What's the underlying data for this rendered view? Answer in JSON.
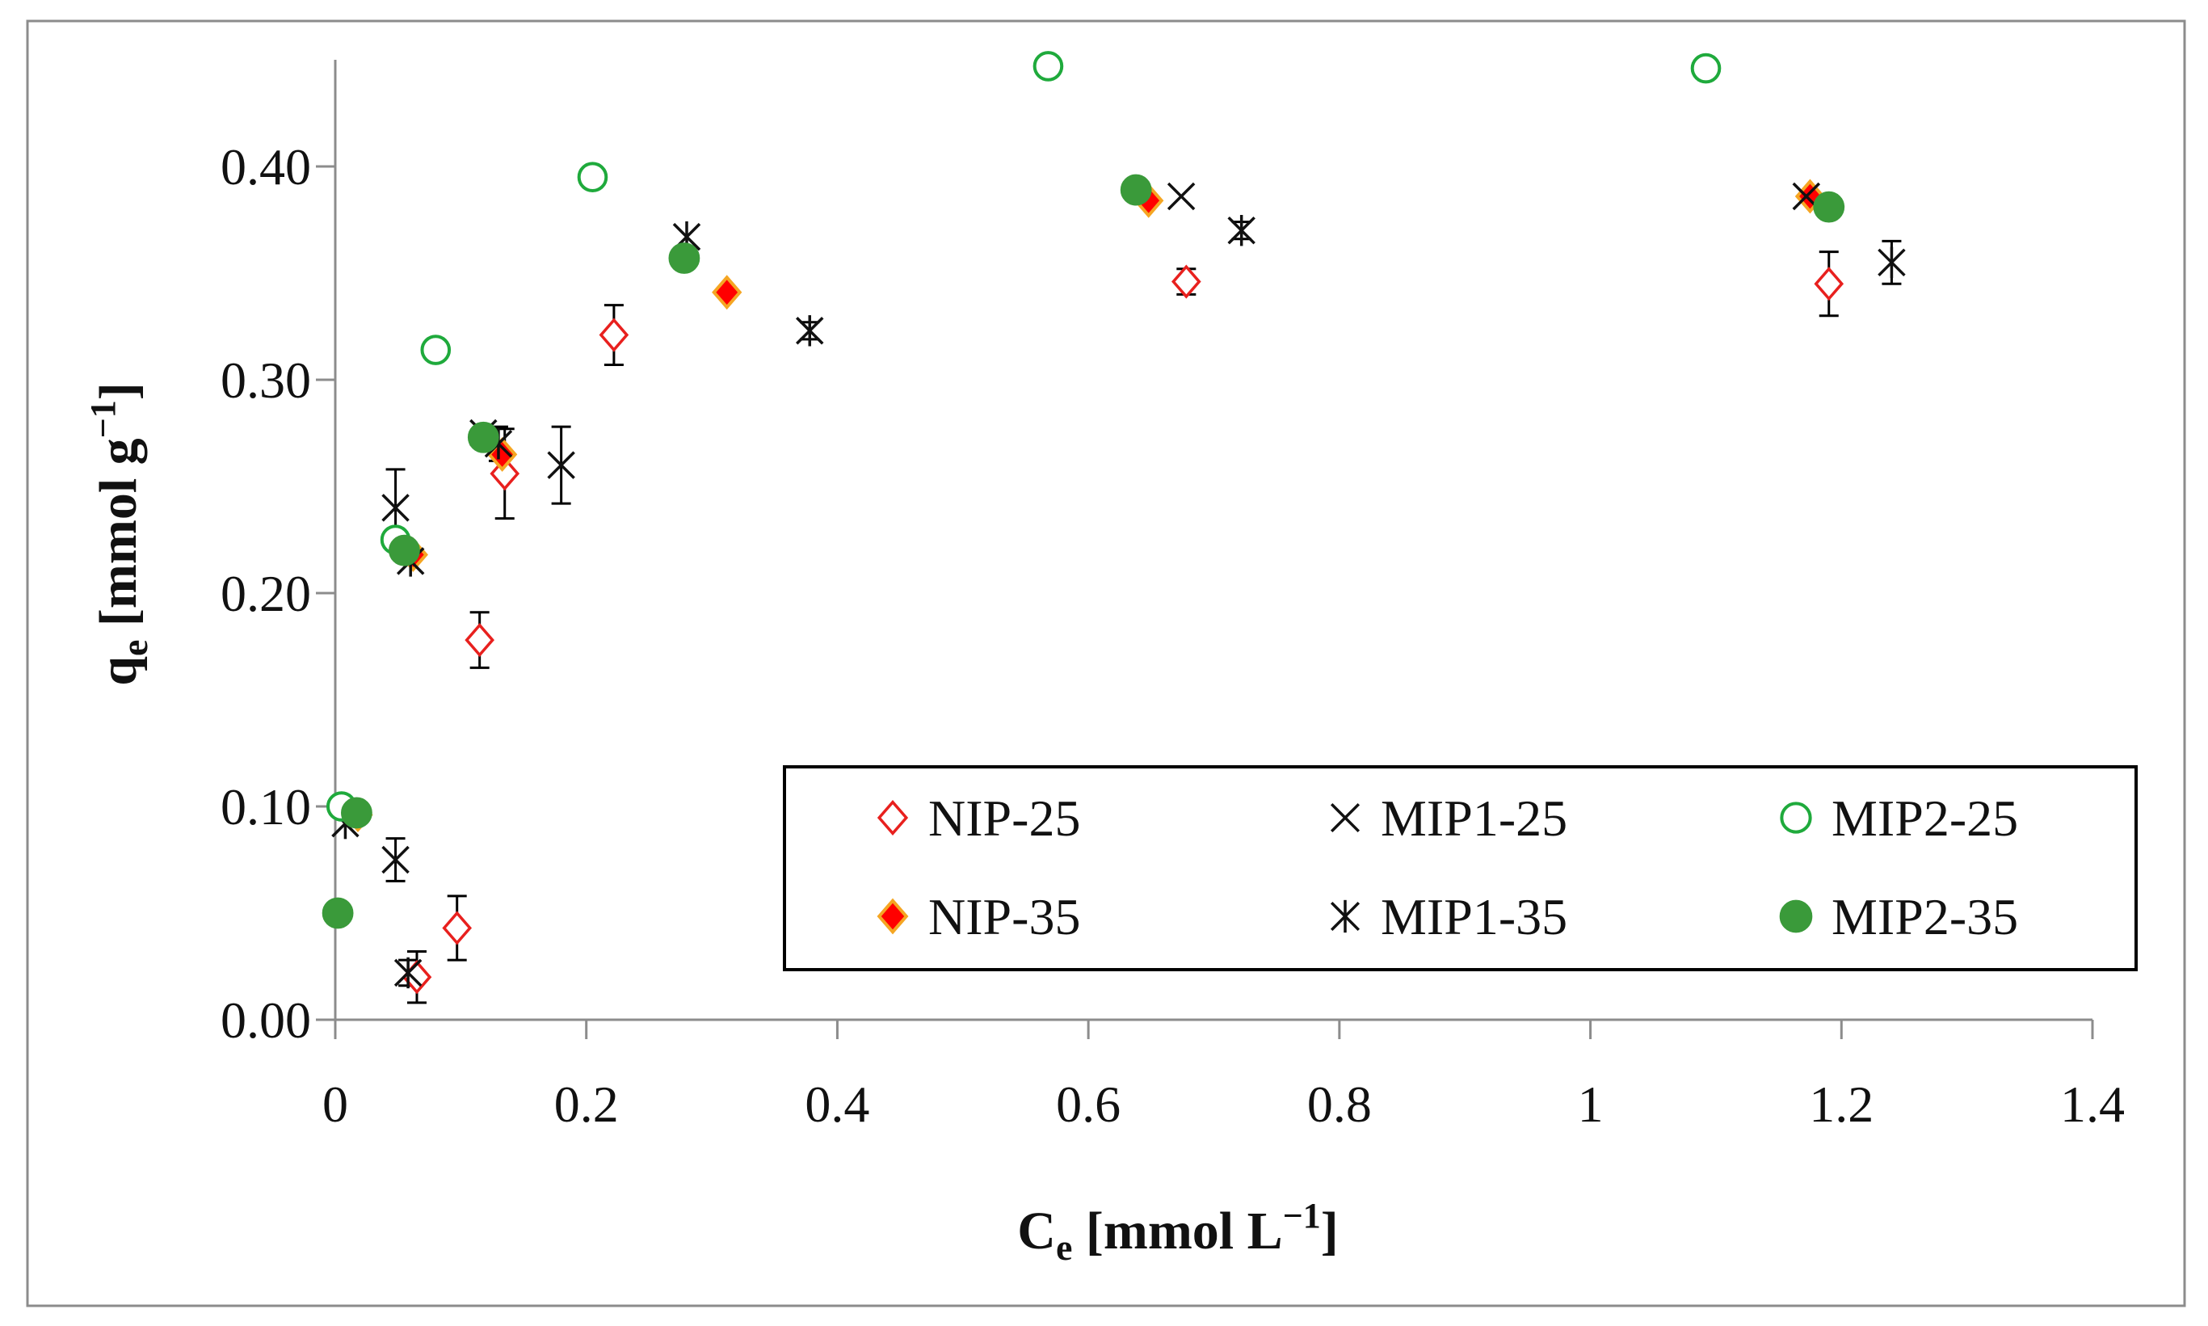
{
  "chart_data": {
    "type": "scatter",
    "title": "",
    "xlabel_main": "C",
    "xlabel_sub": "e",
    "xlabel_rest": " [mmol L",
    "xlabel_sup": "−1",
    "xlabel_end": "]",
    "ylabel_main": "q",
    "ylabel_sub": "e",
    "ylabel_rest": " [mmol g",
    "ylabel_sup": "−1",
    "ylabel_end": "]",
    "xlim": [
      0,
      1.4
    ],
    "ylim": [
      0,
      0.45
    ],
    "x_ticks": [
      0,
      0.2,
      0.4,
      0.6,
      0.8,
      1.0,
      1.2,
      1.4
    ],
    "x_tick_labels": [
      "0",
      "0.2",
      "0.4",
      "0.6",
      "0.8",
      "1",
      "1.2",
      "1.4"
    ],
    "y_ticks": [
      0,
      0.1,
      0.2,
      0.3,
      0.4
    ],
    "y_tick_labels": [
      "0.00",
      "0.10",
      "0.20",
      "0.30",
      "0.40"
    ],
    "legend_position": "lower-right",
    "series": [
      {
        "name": "NIP-25",
        "marker": "diamond-open",
        "color": "#e8201e",
        "points": [
          {
            "x": 0.065,
            "y": 0.02,
            "err": 0.012
          },
          {
            "x": 0.097,
            "y": 0.043,
            "err": 0.015
          },
          {
            "x": 0.115,
            "y": 0.178,
            "err": 0.013
          },
          {
            "x": 0.135,
            "y": 0.256,
            "err": 0.021
          },
          {
            "x": 0.222,
            "y": 0.321,
            "err": 0.014
          },
          {
            "x": 0.678,
            "y": 0.346,
            "err": 0.006
          },
          {
            "x": 1.19,
            "y": 0.345,
            "err": 0.015
          }
        ]
      },
      {
        "name": "NIP-35",
        "marker": "diamond-filled",
        "color": "#ff0000",
        "edge_color": "#f5a623",
        "points": [
          {
            "x": 0.018,
            "y": 0.096,
            "err": 0
          },
          {
            "x": 0.062,
            "y": 0.218,
            "err": 0
          },
          {
            "x": 0.133,
            "y": 0.265,
            "err": 0
          },
          {
            "x": 0.312,
            "y": 0.341,
            "err": 0
          },
          {
            "x": 0.648,
            "y": 0.384,
            "err": 0
          },
          {
            "x": 1.175,
            "y": 0.386,
            "err": 0
          }
        ]
      },
      {
        "name": "MIP1-25",
        "marker": "x",
        "color": "#111111",
        "points": [
          {
            "x": 0.048,
            "y": 0.24,
            "err": 0.018
          },
          {
            "x": 0.048,
            "y": 0.075,
            "err": 0.01
          },
          {
            "x": 0.118,
            "y": 0.275,
            "err": 0.004
          },
          {
            "x": 0.18,
            "y": 0.26,
            "err": 0.018
          },
          {
            "x": 0.674,
            "y": 0.386,
            "err": 0
          },
          {
            "x": 1.172,
            "y": 0.386,
            "err": 0
          }
        ]
      },
      {
        "name": "MIP1-35",
        "marker": "asterisk",
        "color": "#111111",
        "points": [
          {
            "x": 0.008,
            "y": 0.092,
            "err": 0
          },
          {
            "x": 0.058,
            "y": 0.022,
            "err": 0.006
          },
          {
            "x": 0.06,
            "y": 0.215,
            "err": 0
          },
          {
            "x": 0.13,
            "y": 0.27,
            "err": 0.008
          },
          {
            "x": 0.28,
            "y": 0.367,
            "err": 0
          },
          {
            "x": 0.378,
            "y": 0.323,
            "err": 0.004
          },
          {
            "x": 0.722,
            "y": 0.37,
            "err": 0.004
          },
          {
            "x": 1.24,
            "y": 0.355,
            "err": 0.01
          }
        ]
      },
      {
        "name": "MIP2-25",
        "marker": "circle-open",
        "color": "#1faa3c",
        "points": [
          {
            "x": 0.005,
            "y": 0.1,
            "err": 0
          },
          {
            "x": 0.048,
            "y": 0.225,
            "err": 0
          },
          {
            "x": 0.08,
            "y": 0.314,
            "err": 0.002
          },
          {
            "x": 0.205,
            "y": 0.395,
            "err": 0.005
          },
          {
            "x": 0.568,
            "y": 0.447,
            "err": 0.003
          },
          {
            "x": 1.092,
            "y": 0.446,
            "err": 0.003
          }
        ]
      },
      {
        "name": "MIP2-35",
        "marker": "circle-filled",
        "color": "#3a9a3a",
        "points": [
          {
            "x": 0.002,
            "y": 0.05,
            "err": 0
          },
          {
            "x": 0.017,
            "y": 0.097,
            "err": 0
          },
          {
            "x": 0.055,
            "y": 0.22,
            "err": 0
          },
          {
            "x": 0.118,
            "y": 0.273,
            "err": 0
          },
          {
            "x": 0.278,
            "y": 0.357,
            "err": 0
          },
          {
            "x": 0.638,
            "y": 0.389,
            "err": 0
          },
          {
            "x": 1.19,
            "y": 0.381,
            "err": 0
          }
        ]
      }
    ],
    "legend_rows": [
      [
        "NIP-25",
        "MIP1-25",
        "MIP2-25"
      ],
      [
        "NIP-35",
        "MIP1-35",
        "MIP2-35"
      ]
    ]
  }
}
